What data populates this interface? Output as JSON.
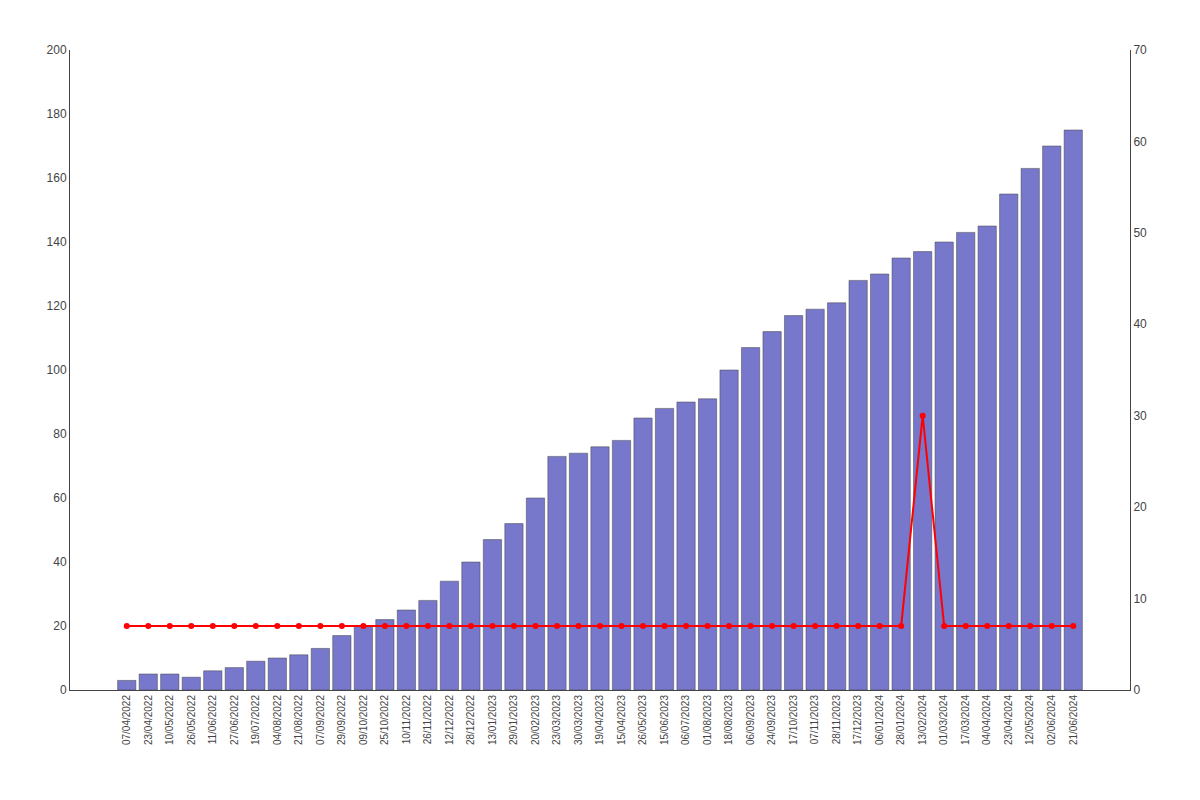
{
  "chart_data": {
    "type": "bar",
    "categories": [
      "07/04/2022",
      "23/04/2022",
      "10/05/2022",
      "26/05/2022",
      "11/06/2022",
      "27/06/2022",
      "19/07/2022",
      "04/08/2022",
      "21/08/2022",
      "07/09/2022",
      "29/09/2022",
      "09/10/2022",
      "25/10/2022",
      "10/11/2022",
      "26/11/2022",
      "12/12/2022",
      "28/12/2022",
      "13/01/2023",
      "29/01/2023",
      "20/02/2023",
      "23/03/2023",
      "30/03/2023",
      "19/04/2023",
      "15/04/2023",
      "26/05/2023",
      "15/06/2023",
      "06/07/2023",
      "01/08/2023",
      "18/08/2023",
      "06/09/2023",
      "24/09/2023",
      "17/10/2023",
      "07/11/2023",
      "28/11/2023",
      "17/12/2023",
      "06/01/2024",
      "28/01/2024",
      "13/02/2024",
      "01/03/2024",
      "17/03/2024",
      "04/04/2024",
      "23/04/2024",
      "12/05/2024",
      "02/06/2024",
      "21/06/2024"
    ],
    "series": [
      {
        "type": "bar",
        "color": "#7777cc",
        "values": [
          3,
          5,
          5,
          4,
          6,
          7,
          9,
          10,
          11,
          13,
          17,
          20,
          22,
          25,
          28,
          34,
          40,
          47,
          52,
          60,
          73,
          74,
          76,
          78,
          85,
          88,
          90,
          91,
          100,
          107,
          112,
          117,
          119,
          121,
          128,
          130,
          135,
          137,
          140,
          143,
          145,
          155,
          163,
          170,
          175
        ]
      },
      {
        "type": "line",
        "axis": "y2",
        "color": "#ff0000",
        "marker": "circle",
        "line_style": "solid",
        "values": [
          7,
          7,
          7,
          7,
          7,
          7,
          7,
          7,
          7,
          7,
          7,
          7,
          7,
          7,
          7,
          7,
          7,
          7,
          7,
          7,
          7,
          7,
          7,
          7,
          7,
          7,
          7,
          7,
          7,
          7,
          7,
          7,
          7,
          7,
          7,
          7,
          7,
          30,
          7,
          7,
          7,
          7,
          7,
          7,
          7
        ]
      }
    ],
    "ylim": [
      0,
      200
    ],
    "yticks": [
      0,
      20,
      40,
      60,
      80,
      100,
      120,
      140,
      160,
      180,
      200
    ],
    "y2lim": [
      0,
      70
    ],
    "y2ticks": [
      0,
      10,
      20,
      30,
      40,
      50,
      60,
      70
    ],
    "grid": false
  }
}
